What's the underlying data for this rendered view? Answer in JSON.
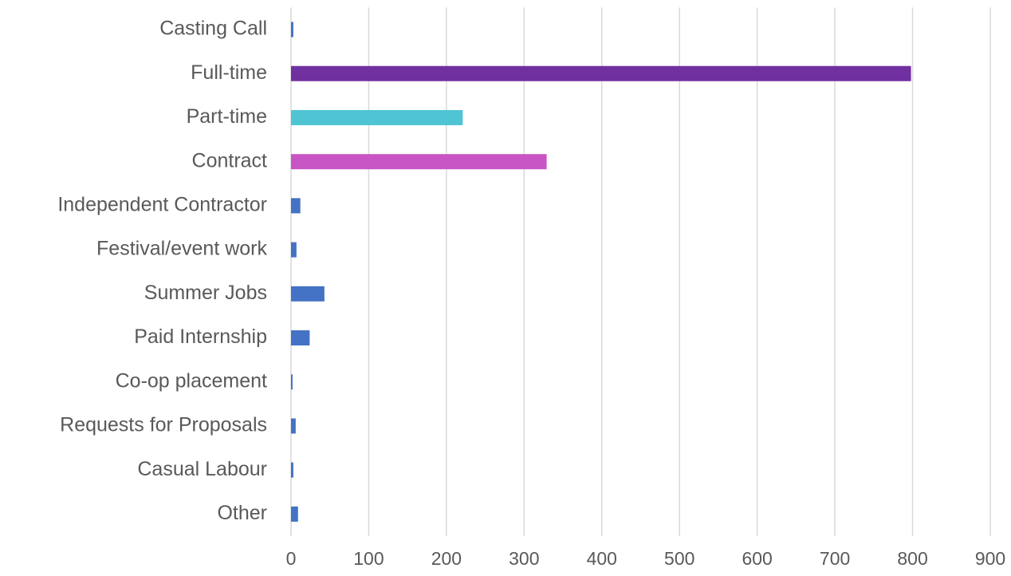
{
  "chart_data": {
    "type": "bar",
    "orientation": "horizontal",
    "categories": [
      "Casting Call",
      "Full-time",
      "Part-time",
      "Contract",
      "Independent Contractor",
      "Festival/event work",
      "Summer Jobs",
      "Paid Internship",
      "Co-op placement",
      "Requests for Proposals",
      "Casual Labour",
      "Other"
    ],
    "values": [
      3,
      798,
      221,
      329,
      12,
      7,
      43,
      24,
      2,
      6,
      3,
      9
    ],
    "colors": [
      "#4472c4",
      "#7030a0",
      "#4fc4d3",
      "#c855c4",
      "#4472c4",
      "#4472c4",
      "#4472c4",
      "#4472c4",
      "#4472c4",
      "#4472c4",
      "#4472c4",
      "#4472c4"
    ],
    "xlim": [
      0,
      900
    ],
    "xticks": [
      0,
      100,
      200,
      300,
      400,
      500,
      600,
      700,
      800,
      900
    ],
    "grid": true
  }
}
